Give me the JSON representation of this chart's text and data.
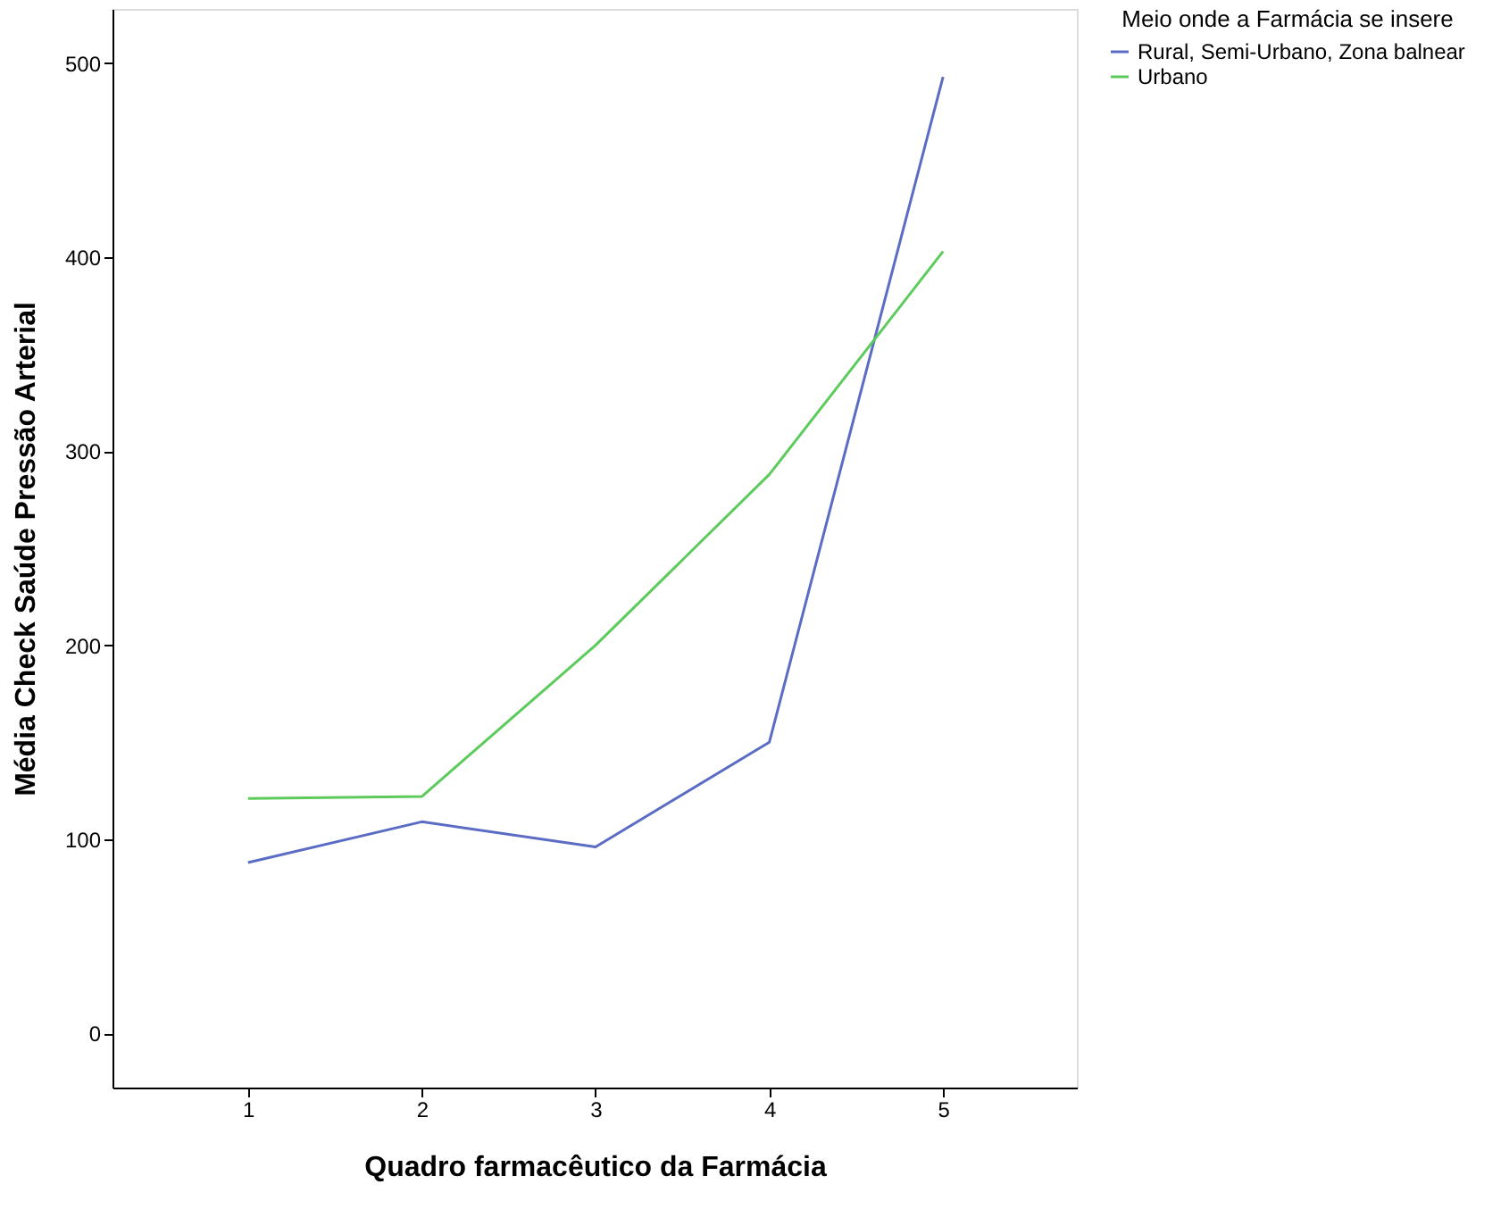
{
  "chart_data": {
    "type": "line",
    "xlabel": "Quadro farmacêutico da Farmácia",
    "ylabel": "Média Check Saúde Pressão Arterial",
    "legend_title": "Meio onde a Farmácia se insere",
    "categories": [
      "1",
      "2",
      "3",
      "4",
      "5"
    ],
    "series": [
      {
        "name": "Rural, Semi-Urbano, Zona balnear",
        "color": "#5b6cc4",
        "values": [
          88,
          109,
          96,
          150,
          493
        ]
      },
      {
        "name": "Urbano",
        "color": "#5ccb5c",
        "values": [
          121,
          122,
          200,
          288,
          403
        ]
      }
    ],
    "ylim": [
      -28,
      528
    ],
    "yticks": [
      0,
      100,
      200,
      300,
      400,
      500
    ],
    "grid": false,
    "legend": "top right",
    "marker": "none",
    "line_style": "solid"
  }
}
